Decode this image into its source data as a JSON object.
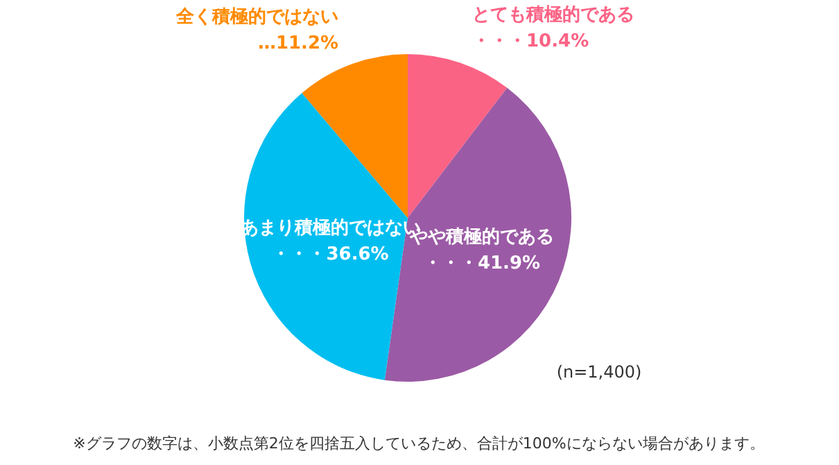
{
  "chart_data": {
    "type": "pie",
    "categories": [
      "とても積極的である",
      "やや積極的である",
      "あまり積極的ではない",
      "全く積極的ではない"
    ],
    "values": [
      10.4,
      41.9,
      36.6,
      11.2
    ],
    "colors": [
      "#fb6385",
      "#9b5aa5",
      "#00bef0",
      "#ff8a00"
    ],
    "value_labels": [
      "・・・10.4%",
      "・・・41.9%",
      "・・・36.6%",
      "…11.2%"
    ],
    "annotations": [
      "(n=1,400)",
      "※グラフの数字は、小数点第2位を四捨五入しているため、合計が100%にならない場合があります。"
    ]
  }
}
